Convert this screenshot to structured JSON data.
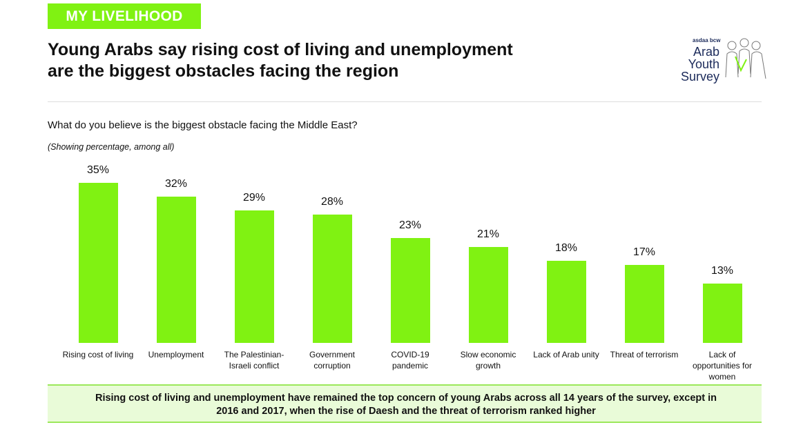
{
  "chart_data": {
    "type": "bar",
    "section": "MY LIVELIHOOD",
    "title": [
      "Young Arabs say rising cost of living and unemployment",
      "are the biggest obstacles facing the region"
    ],
    "subtitle": "What do you believe is the biggest obstacle facing the Middle East?",
    "note": "(Showing percentage, among all)",
    "logo": {
      "brand": "asdaa bcw",
      "name": [
        "Arab",
        "Youth",
        "Survey"
      ]
    },
    "categories": [
      "Rising cost of living",
      "Unemployment",
      "The Palestinian-Israeli conflict",
      "Government corruption",
      "COVID-19 pandemic",
      "Slow economic growth",
      "Lack of Arab unity",
      "Threat of terrorism",
      "Lack of opportunities for women"
    ],
    "values": [
      35,
      32,
      29,
      28,
      23,
      21,
      18,
      17,
      13
    ],
    "value_labels": [
      "35%",
      "32%",
      "29%",
      "28%",
      "23%",
      "21%",
      "18%",
      "17%",
      "13%"
    ],
    "color": "#80f212",
    "footnote": "Rising cost of living and unemployment have remained the top concern of young Arabs across all 14 years of the survey, except in 2016 and 2017, when the rise of Daesh and the threat of terrorism ranked higher"
  }
}
